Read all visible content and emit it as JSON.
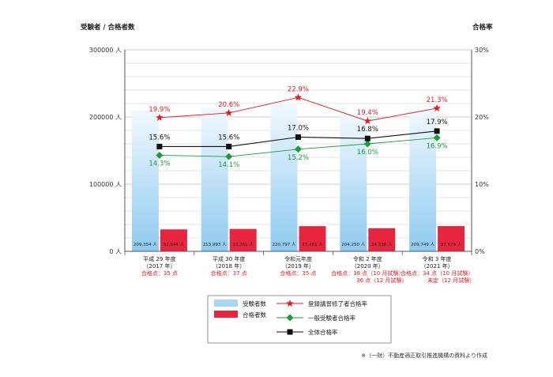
{
  "chart_data": {
    "type": "bar",
    "left_axis_title": "受験者 / 合格者数",
    "right_axis_title": "合格率",
    "left_ticks": [
      "0 人",
      "100000 人",
      "200000 人",
      "300000 人"
    ],
    "left_ylim": [
      0,
      300000
    ],
    "right_ticks": [
      "0%",
      "10%",
      "20%",
      "30%"
    ],
    "right_ylim": [
      0,
      30
    ],
    "grid": true,
    "categories": [
      {
        "lines": [
          "平成 29 年度",
          "（2017 年）"
        ],
        "pass_lines": [
          "合格点：35 点"
        ]
      },
      {
        "lines": [
          "平成 30 年度",
          "（2018 年）"
        ],
        "pass_lines": [
          "合格点：37 点"
        ]
      },
      {
        "lines": [
          "令和元年度",
          "（2019 年）"
        ],
        "pass_lines": [
          "合格点：35 点"
        ]
      },
      {
        "lines": [
          "令和 2 年度",
          "（2020 年）"
        ],
        "pass_lines": [
          "合格点：38 点（10 月試験）",
          "36 点（12 月試験）"
        ]
      },
      {
        "lines": [
          "令和 3 年度",
          "（2021 年）"
        ],
        "pass_lines": [
          "合格点：34 点（10 月試験）",
          "未定（12 月試験）"
        ]
      }
    ],
    "bar_series": [
      {
        "name": "受験者数",
        "color": "#a9d6f2",
        "values": [
          209354,
          213993,
          220797,
          204250,
          209749
        ],
        "labels": [
          "209,354 人",
          "213,993 人",
          "220,797 人",
          "204,250 人",
          "209,749 人"
        ]
      },
      {
        "name": "合格者数",
        "color": "#e8253f",
        "values": [
          32644,
          33360,
          37481,
          34338,
          37579
        ],
        "labels": [
          "32,644 人",
          "33,360 人",
          "37,481 人",
          "34,338 人",
          "37,579 人"
        ]
      }
    ],
    "line_series": [
      {
        "name": "登録講習修了者合格率",
        "color": "#e01b24",
        "marker": "star",
        "values": [
          19.9,
          20.6,
          22.9,
          19.4,
          21.3
        ],
        "labels": [
          "19.9%",
          "20.6%",
          "22.9%",
          "19.4%",
          "21.3%"
        ]
      },
      {
        "name": "一般受験者合格率",
        "color": "#1e9a3c",
        "marker": "diamond",
        "values": [
          14.3,
          14.1,
          15.2,
          16.0,
          16.9
        ],
        "labels": [
          "14.3%",
          "14.1%",
          "15.2%",
          "16.0%",
          "16.9%"
        ]
      },
      {
        "name": "全体合格率",
        "color": "#111111",
        "marker": "square",
        "values": [
          15.6,
          15.6,
          17.0,
          16.8,
          17.9
        ],
        "labels": [
          "15.6%",
          "15.6%",
          "17.0%",
          "16.8%",
          "17.9%"
        ]
      }
    ],
    "legend_placement": "bottom",
    "source_note": "※（一財）不動産適正取引推進機構の資料より作成"
  }
}
